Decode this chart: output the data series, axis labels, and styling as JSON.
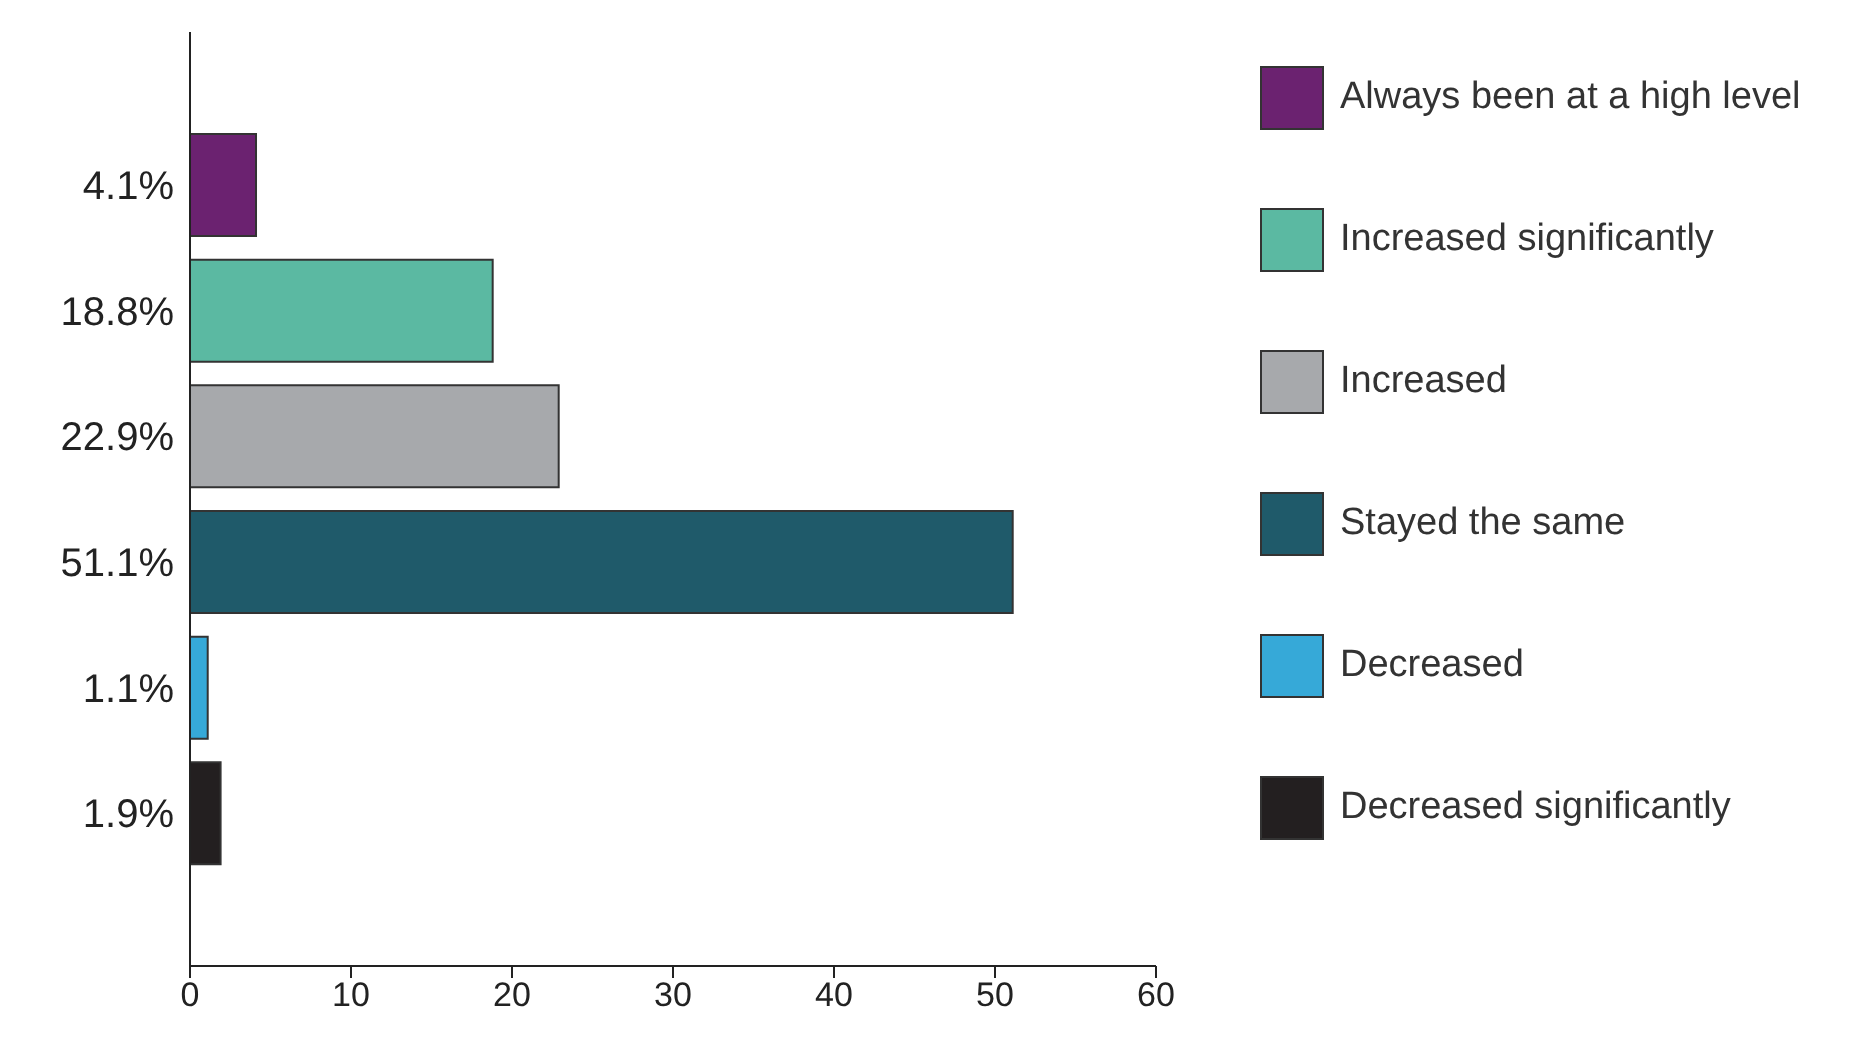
{
  "chart_data": {
    "type": "bar",
    "orientation": "horizontal",
    "stacked": true,
    "categories": [
      "4.1%",
      "18.8%",
      "22.9%",
      "51.1%",
      "1.1%",
      "1.9%"
    ],
    "series": [
      {
        "name": "Always been at a high level",
        "color": "#6b2270",
        "values": [
          4.1,
          null,
          null,
          null,
          null,
          null
        ]
      },
      {
        "name": "Increased significantly",
        "color": "#5bb9a2",
        "values": [
          null,
          18.8,
          null,
          null,
          null,
          null
        ]
      },
      {
        "name": "Increased",
        "color": "#a7a9ac",
        "values": [
          null,
          null,
          22.9,
          null,
          null,
          null
        ]
      },
      {
        "name": "Stayed the same",
        "color": "#1f5a6a",
        "values": [
          null,
          null,
          null,
          51.1,
          null,
          null
        ]
      },
      {
        "name": "Decreased",
        "color": "#36a9d8",
        "values": [
          null,
          null,
          null,
          null,
          1.1,
          null
        ]
      },
      {
        "name": "Decreased significantly",
        "color": "#231f20",
        "values": [
          null,
          null,
          null,
          null,
          null,
          1.9
        ]
      }
    ],
    "xlim": [
      0,
      60
    ],
    "xticks": [
      0,
      10,
      20,
      30,
      40,
      50,
      60
    ],
    "grid": false,
    "legend": "right"
  }
}
